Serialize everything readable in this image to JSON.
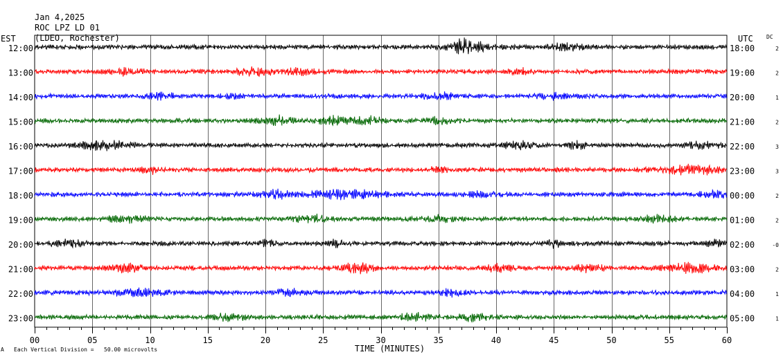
{
  "header": {
    "date": "Jan 4,2025",
    "station": "ROC LPZ LD 01",
    "network": "(LDEO, Rochester)"
  },
  "labels": {
    "left_zone": "EST",
    "right_zone": "UTC",
    "dc": "DC"
  },
  "footer": {
    "scale_note": "Each Vertical Division =   50.00 microvolts",
    "corner_mark": "A"
  },
  "chart_data": {
    "type": "line",
    "xlabel": "TIME (MINUTES)",
    "xlim": [
      0,
      60
    ],
    "x_ticks": [
      "00",
      "05",
      "10",
      "15",
      "20",
      "25",
      "30",
      "35",
      "40",
      "45",
      "50",
      "55",
      "60"
    ],
    "colors": [
      "#000000",
      "#ff0000",
      "#0000ff",
      "#006600"
    ],
    "rows": [
      {
        "est": "12:00",
        "utc": "18:00",
        "dc": "2",
        "amp": 4,
        "bursts": [
          [
            38,
            3,
            1.5
          ],
          [
            37,
            1,
            1.8
          ],
          [
            46,
            2,
            1.2
          ]
        ]
      },
      {
        "est": "13:00",
        "utc": "19:00",
        "dc": "2",
        "amp": 4,
        "bursts": [
          [
            8,
            2,
            1.2
          ],
          [
            19,
            2,
            1.5
          ],
          [
            23,
            2,
            1.2
          ],
          [
            42,
            1,
            1.0
          ]
        ]
      },
      {
        "est": "14:00",
        "utc": "20:00",
        "dc": "1",
        "amp": 4,
        "bursts": [
          [
            11,
            2,
            1.0
          ],
          [
            17,
            1,
            0.8
          ],
          [
            35,
            2,
            1.0
          ],
          [
            45,
            2,
            1.0
          ]
        ]
      },
      {
        "est": "15:00",
        "utc": "21:00",
        "dc": "2",
        "amp": 4,
        "bursts": [
          [
            21,
            2,
            1.5
          ],
          [
            26,
            2,
            1.5
          ],
          [
            29,
            2,
            1.2
          ],
          [
            35,
            2,
            1.0
          ]
        ]
      },
      {
        "est": "16:00",
        "utc": "22:00",
        "dc": "3",
        "amp": 4,
        "bursts": [
          [
            6,
            3,
            1.5
          ],
          [
            42,
            2,
            1.2
          ],
          [
            47,
            1,
            1.4
          ],
          [
            58,
            2,
            1.2
          ]
        ]
      },
      {
        "est": "17:00",
        "utc": "23:00",
        "dc": "3",
        "amp": 4,
        "bursts": [
          [
            10,
            1,
            1.2
          ],
          [
            35,
            1,
            1.2
          ],
          [
            57,
            4,
            1.5
          ]
        ]
      },
      {
        "est": "18:00",
        "utc": "00:00",
        "dc": "2",
        "amp": 4,
        "bursts": [
          [
            21,
            2,
            1.4
          ],
          [
            27,
            4,
            1.6
          ],
          [
            39,
            2,
            1.0
          ],
          [
            59,
            2,
            1.0
          ]
        ]
      },
      {
        "est": "19:00",
        "utc": "01:00",
        "dc": "2",
        "amp": 4,
        "bursts": [
          [
            8,
            2,
            1.4
          ],
          [
            24,
            2,
            1.2
          ],
          [
            35,
            2,
            1.0
          ],
          [
            54,
            2,
            1.2
          ]
        ]
      },
      {
        "est": "20:00",
        "utc": "02:00",
        "dc": "-0",
        "amp": 4,
        "bursts": [
          [
            3,
            2,
            1.2
          ],
          [
            20,
            1,
            1.2
          ],
          [
            26,
            1,
            1.4
          ],
          [
            45,
            1,
            1.4
          ],
          [
            59,
            1,
            1.5
          ]
        ]
      },
      {
        "est": "21:00",
        "utc": "03:00",
        "dc": "2",
        "amp": 4,
        "bursts": [
          [
            8,
            2,
            1.4
          ],
          [
            28,
            2,
            1.6
          ],
          [
            40,
            2,
            1.2
          ],
          [
            48,
            2,
            1.2
          ],
          [
            57,
            3,
            1.6
          ]
        ]
      },
      {
        "est": "22:00",
        "utc": "04:00",
        "dc": "1",
        "amp": 4,
        "bursts": [
          [
            9,
            3,
            1.4
          ],
          [
            22,
            2,
            1.0
          ],
          [
            36,
            2,
            1.0
          ]
        ]
      },
      {
        "est": "23:00",
        "utc": "05:00",
        "dc": "1",
        "amp": 4,
        "bursts": [
          [
            17,
            2,
            1.2
          ],
          [
            33,
            2,
            1.2
          ],
          [
            38,
            2,
            1.2
          ]
        ]
      }
    ]
  }
}
